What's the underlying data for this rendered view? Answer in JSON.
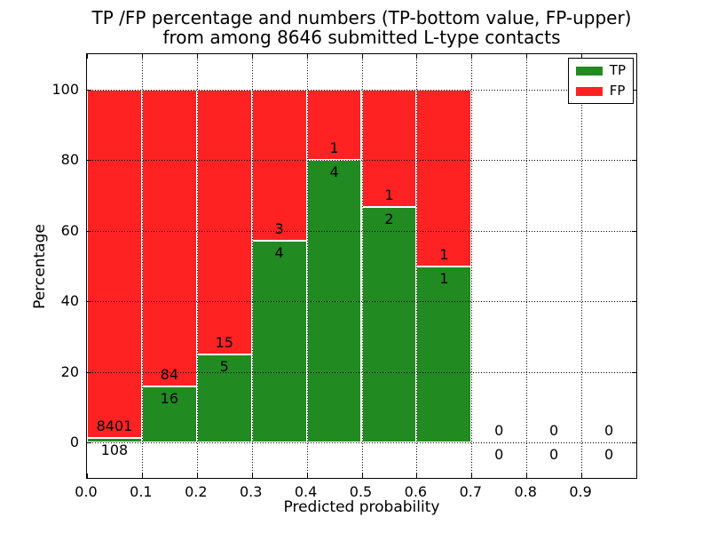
{
  "chart_data": {
    "type": "bar",
    "stacked": true,
    "title_line1": "TP /FP percentage and numbers (TP-bottom value, FP-upper)",
    "title_line2": "from among 8646 submitted L-type contacts",
    "xlabel": "Predicted probability",
    "ylabel": "Percentage",
    "total_contacts": 8646,
    "xlim": [
      0.0,
      1.0
    ],
    "ylim": [
      -10,
      110
    ],
    "x_ticks": [
      0.0,
      0.1,
      0.2,
      0.3,
      0.4,
      0.5,
      0.6,
      0.7,
      0.8,
      0.9
    ],
    "x_tick_labels": [
      "0.0",
      "0.1",
      "0.2",
      "0.3",
      "0.4",
      "0.5",
      "0.6",
      "0.7",
      "0.8",
      "0.9"
    ],
    "y_ticks": [
      0,
      20,
      40,
      60,
      80,
      100
    ],
    "y_tick_labels": [
      "0",
      "20",
      "40",
      "60",
      "80",
      "100"
    ],
    "grid_style": "dotted",
    "bin_width": 0.1,
    "bins": [
      {
        "x_start": 0.0,
        "x_end": 0.1,
        "tp": 108,
        "fp": 8401,
        "tp_pct": 1.27
      },
      {
        "x_start": 0.1,
        "x_end": 0.2,
        "tp": 16,
        "fp": 84,
        "tp_pct": 16.0
      },
      {
        "x_start": 0.2,
        "x_end": 0.3,
        "tp": 5,
        "fp": 15,
        "tp_pct": 25.0
      },
      {
        "x_start": 0.3,
        "x_end": 0.4,
        "tp": 4,
        "fp": 3,
        "tp_pct": 57.14
      },
      {
        "x_start": 0.4,
        "x_end": 0.5,
        "tp": 4,
        "fp": 1,
        "tp_pct": 80.0
      },
      {
        "x_start": 0.5,
        "x_end": 0.6,
        "tp": 2,
        "fp": 1,
        "tp_pct": 66.67
      },
      {
        "x_start": 0.6,
        "x_end": 0.7,
        "tp": 1,
        "fp": 1,
        "tp_pct": 50.0
      },
      {
        "x_start": 0.7,
        "x_end": 0.8,
        "tp": 0,
        "fp": 0,
        "tp_pct": 0
      },
      {
        "x_start": 0.8,
        "x_end": 0.9,
        "tp": 0,
        "fp": 0,
        "tp_pct": 0
      },
      {
        "x_start": 0.9,
        "x_end": 1.0,
        "tp": 0,
        "fp": 0,
        "tp_pct": 0
      }
    ],
    "legend": {
      "position": "upper-right",
      "entries": [
        {
          "label": "TP",
          "color": "#218a21"
        },
        {
          "label": "FP",
          "color": "#fe2222"
        }
      ]
    },
    "colors": {
      "tp": "#218a21",
      "fp": "#fe2222",
      "axis": "#000000",
      "grid": "#000000",
      "bar_edge": "#ffffff",
      "background": "#ffffff"
    }
  }
}
